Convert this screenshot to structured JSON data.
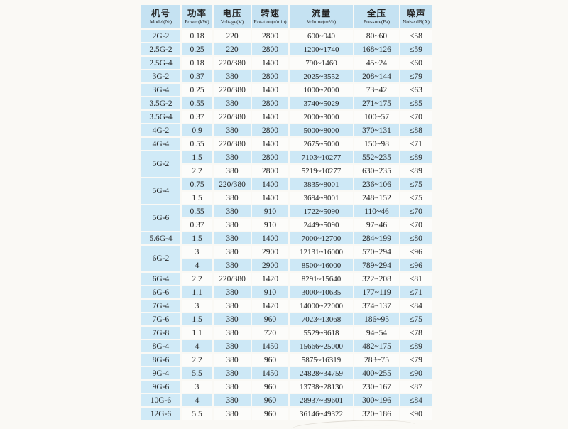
{
  "colors": {
    "page_bg": "#faf9f5",
    "header_blue": "#c5e2f2",
    "model_blue": "#d0eaf7",
    "row_blue": "#cde8f6",
    "row_white": "#fcfcfa",
    "text": "#262626"
  },
  "table": {
    "headers": [
      {
        "zh": "机号",
        "en": "Model(№)"
      },
      {
        "zh": "功率",
        "en": "Power(kW)"
      },
      {
        "zh": "电压",
        "en": "Voltage(V)"
      },
      {
        "zh": "转速",
        "en": "Rotation(r/min)"
      },
      {
        "zh": "流量",
        "en": "Volume(m³/h)"
      },
      {
        "zh": "全压",
        "en": "Pressure(Pa)"
      },
      {
        "zh": "噪声",
        "en": "Noise dB(A)"
      }
    ],
    "rows": [
      {
        "model": "2G-2",
        "rowspan": 1,
        "power": "0.18",
        "voltage": "220",
        "rotation": "2800",
        "volume": "600~940",
        "pressure": "80~60",
        "noise": "≤58"
      },
      {
        "model": "2.5G-2",
        "rowspan": 1,
        "power": "0.25",
        "voltage": "220",
        "rotation": "2800",
        "volume": "1200~1740",
        "pressure": "168~126",
        "noise": "≤59"
      },
      {
        "model": "2.5G-4",
        "rowspan": 1,
        "power": "0.18",
        "voltage": "220/380",
        "rotation": "1400",
        "volume": "790~1460",
        "pressure": "45~24",
        "noise": "≤60"
      },
      {
        "model": "3G-2",
        "rowspan": 1,
        "power": "0.37",
        "voltage": "380",
        "rotation": "2800",
        "volume": "2025~3552",
        "pressure": "208~144",
        "noise": "≤79"
      },
      {
        "model": "3G-4",
        "rowspan": 1,
        "power": "0.25",
        "voltage": "220/380",
        "rotation": "1400",
        "volume": "1000~2000",
        "pressure": "73~42",
        "noise": "≤63"
      },
      {
        "model": "3.5G-2",
        "rowspan": 1,
        "power": "0.55",
        "voltage": "380",
        "rotation": "2800",
        "volume": "3740~5029",
        "pressure": "271~175",
        "noise": "≤85"
      },
      {
        "model": "3.5G-4",
        "rowspan": 1,
        "power": "0.37",
        "voltage": "220/380",
        "rotation": "1400",
        "volume": "2000~3000",
        "pressure": "100~57",
        "noise": "≤70"
      },
      {
        "model": "4G-2",
        "rowspan": 1,
        "power": "0.9",
        "voltage": "380",
        "rotation": "2800",
        "volume": "5000~8000",
        "pressure": "370~131",
        "noise": "≤88"
      },
      {
        "model": "4G-4",
        "rowspan": 1,
        "power": "0.55",
        "voltage": "220/380",
        "rotation": "1400",
        "volume": "2675~5000",
        "pressure": "150~98",
        "noise": "≤71"
      },
      {
        "model": "5G-2",
        "rowspan": 2,
        "power": "1.5",
        "voltage": "380",
        "rotation": "2800",
        "volume": "7103~10277",
        "pressure": "552~235",
        "noise": "≤89"
      },
      {
        "power": "2.2",
        "voltage": "380",
        "rotation": "2800",
        "volume": "5219~10277",
        "pressure": "630~235",
        "noise": "≤89"
      },
      {
        "model": "5G-4",
        "rowspan": 2,
        "power": "0.75",
        "voltage": "220/380",
        "rotation": "1400",
        "volume": "3835~8001",
        "pressure": "236~106",
        "noise": "≤75"
      },
      {
        "power": "1.5",
        "voltage": "380",
        "rotation": "1400",
        "volume": "3694~8001",
        "pressure": "248~152",
        "noise": "≤75"
      },
      {
        "model": "5G-6",
        "rowspan": 2,
        "power": "0.55",
        "voltage": "380",
        "rotation": "910",
        "volume": "1722~5090",
        "pressure": "110~46",
        "noise": "≤70"
      },
      {
        "power": "0.37",
        "voltage": "380",
        "rotation": "910",
        "volume": "2449~5090",
        "pressure": "97~46",
        "noise": "≤70"
      },
      {
        "model": "5.6G-4",
        "rowspan": 1,
        "power": "1.5",
        "voltage": "380",
        "rotation": "1400",
        "volume": "7000~12700",
        "pressure": "284~199",
        "noise": "≤80"
      },
      {
        "model": "6G-2",
        "rowspan": 2,
        "power": "3",
        "voltage": "380",
        "rotation": "2900",
        "volume": "12131~16000",
        "pressure": "570~294",
        "noise": "≤96"
      },
      {
        "power": "4",
        "voltage": "380",
        "rotation": "2900",
        "volume": "8500~16000",
        "pressure": "789~294",
        "noise": "≤96"
      },
      {
        "model": "6G-4",
        "rowspan": 1,
        "power": "2.2",
        "voltage": "220/380",
        "rotation": "1420",
        "volume": "8291~15640",
        "pressure": "322~208",
        "noise": "≤81"
      },
      {
        "model": "6G-6",
        "rowspan": 1,
        "power": "1.1",
        "voltage": "380",
        "rotation": "910",
        "volume": "3000~10635",
        "pressure": "177~119",
        "noise": "≤71"
      },
      {
        "model": "7G-4",
        "rowspan": 1,
        "power": "3",
        "voltage": "380",
        "rotation": "1420",
        "volume": "14000~22000",
        "pressure": "374~137",
        "noise": "≤84"
      },
      {
        "model": "7G-6",
        "rowspan": 1,
        "power": "1.5",
        "voltage": "380",
        "rotation": "960",
        "volume": "7023~13068",
        "pressure": "186~95",
        "noise": "≤75"
      },
      {
        "model": "7G-8",
        "rowspan": 1,
        "power": "1.1",
        "voltage": "380",
        "rotation": "720",
        "volume": "5529~9618",
        "pressure": "94~54",
        "noise": "≤78"
      },
      {
        "model": "8G-4",
        "rowspan": 1,
        "power": "4",
        "voltage": "380",
        "rotation": "1450",
        "volume": "15666~25000",
        "pressure": "482~175",
        "noise": "≤89"
      },
      {
        "model": "8G-6",
        "rowspan": 1,
        "power": "2.2",
        "voltage": "380",
        "rotation": "960",
        "volume": "5875~16319",
        "pressure": "283~75",
        "noise": "≤79"
      },
      {
        "model": "9G-4",
        "rowspan": 1,
        "power": "5.5",
        "voltage": "380",
        "rotation": "1450",
        "volume": "24828~34759",
        "pressure": "400~255",
        "noise": "≤90"
      },
      {
        "model": "9G-6",
        "rowspan": 1,
        "power": "3",
        "voltage": "380",
        "rotation": "960",
        "volume": "13738~28130",
        "pressure": "230~167",
        "noise": "≤87"
      },
      {
        "model": "10G-6",
        "rowspan": 1,
        "power": "4",
        "voltage": "380",
        "rotation": "960",
        "volume": "28937~39601",
        "pressure": "300~196",
        "noise": "≤84"
      },
      {
        "model": "12G-6",
        "rowspan": 1,
        "power": "5.5",
        "voltage": "380",
        "rotation": "960",
        "volume": "36146~49322",
        "pressure": "320~186",
        "noise": "≤90"
      }
    ]
  }
}
